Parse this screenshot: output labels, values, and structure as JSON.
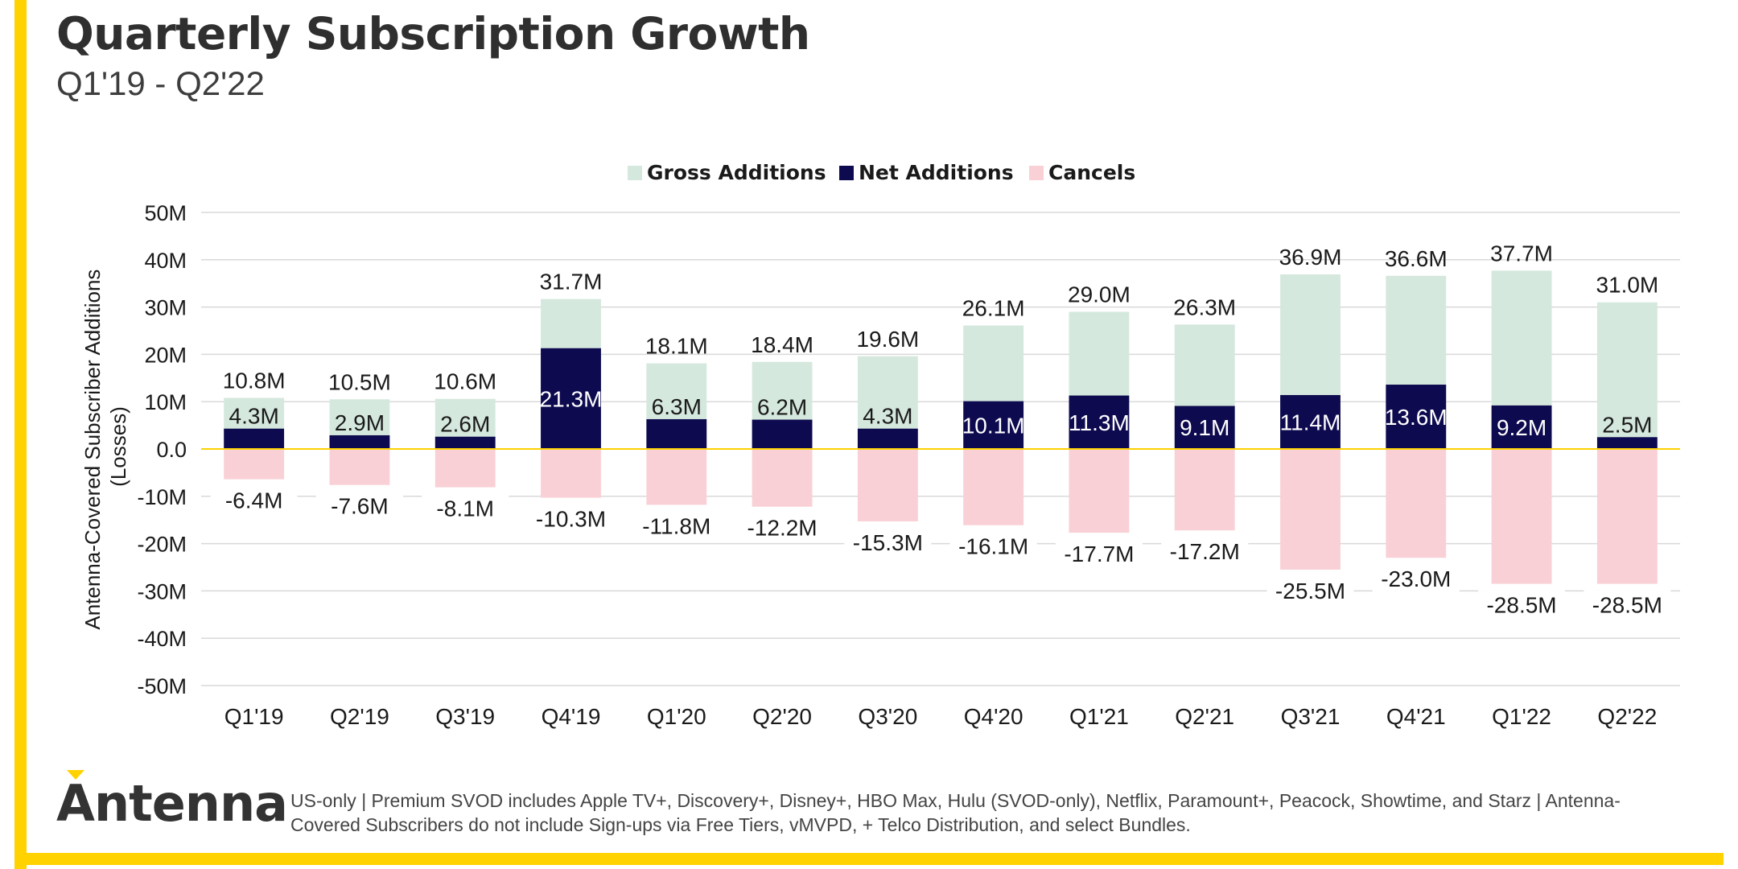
{
  "page": {
    "title": "Quarterly Subscription Growth",
    "subtitle": "Q1'19 - Q2'22",
    "logo_text": "Antenna",
    "footnote": "US-only | Premium SVOD includes Apple TV+, Discovery+, Disney+, HBO Max, Hulu (SVOD-only), Netflix, Paramount+, Peacock, Showtime, and Starz | Antenna-Covered Subscribers do not include Sign-ups via Free Tiers, vMVPD, + Telco Distribution, and select Bundles.",
    "accent_color": "#FFD200"
  },
  "chart_data": {
    "type": "bar",
    "categories": [
      "Q1'19",
      "Q2'19",
      "Q3'19",
      "Q4'19",
      "Q1'20",
      "Q2'20",
      "Q3'20",
      "Q4'20",
      "Q1'21",
      "Q2'21",
      "Q3'21",
      "Q4'21",
      "Q1'22",
      "Q2'22"
    ],
    "series": [
      {
        "name": "Gross Additions",
        "color": "#D5E8DD",
        "values": [
          10.8,
          10.5,
          10.6,
          31.7,
          18.1,
          18.4,
          19.6,
          26.1,
          29.0,
          26.3,
          36.9,
          36.6,
          37.7,
          31.0
        ],
        "labels": [
          "10.8M",
          "10.5M",
          "10.6M",
          "31.7M",
          "18.1M",
          "18.4M",
          "19.6M",
          "26.1M",
          "29.0M",
          "26.3M",
          "36.9M",
          "36.6M",
          "37.7M",
          "31.0M"
        ]
      },
      {
        "name": "Net Additions",
        "color": "#0E0A4F",
        "values": [
          4.3,
          2.9,
          2.6,
          21.3,
          6.3,
          6.2,
          4.3,
          10.1,
          11.3,
          9.1,
          11.4,
          13.6,
          9.2,
          2.5
        ],
        "labels": [
          "4.3M",
          "2.9M",
          "2.6M",
          "21.3M",
          "6.3M",
          "6.2M",
          "4.3M",
          "10.1M",
          "11.3M",
          "9.1M",
          "11.4M",
          "13.6M",
          "9.2M",
          "2.5M"
        ]
      },
      {
        "name": "Cancels",
        "color": "#F9D0D6",
        "values": [
          -6.4,
          -7.6,
          -8.1,
          -10.3,
          -11.8,
          -12.2,
          -15.3,
          -16.1,
          -17.7,
          -17.2,
          -25.5,
          -23.0,
          -28.5,
          -28.5
        ],
        "labels": [
          "-6.4M",
          "-7.6M",
          "-8.1M",
          "-10.3M",
          "-11.8M",
          "-12.2M",
          "-15.3M",
          "-16.1M",
          "-17.7M",
          "-17.2M",
          "-25.5M",
          "-23.0M",
          "-28.5M",
          "-28.5M"
        ]
      }
    ],
    "ylim": [
      -50,
      50
    ],
    "yticks": [
      50,
      40,
      30,
      20,
      10,
      0,
      -10,
      -20,
      -30,
      -40,
      -50
    ],
    "ytick_labels": [
      "50M",
      "40M",
      "30M",
      "20M",
      "10M",
      "0.0",
      "-10M",
      "-20M",
      "-30M",
      "-40M",
      "-50M"
    ],
    "ylabel_lines": [
      "Antenna-Covered Subscriber Additions",
      "(Losses)"
    ],
    "xlabel": "",
    "legend_position": "top-center",
    "grid": true,
    "zero_line_color": "#FFD200"
  }
}
